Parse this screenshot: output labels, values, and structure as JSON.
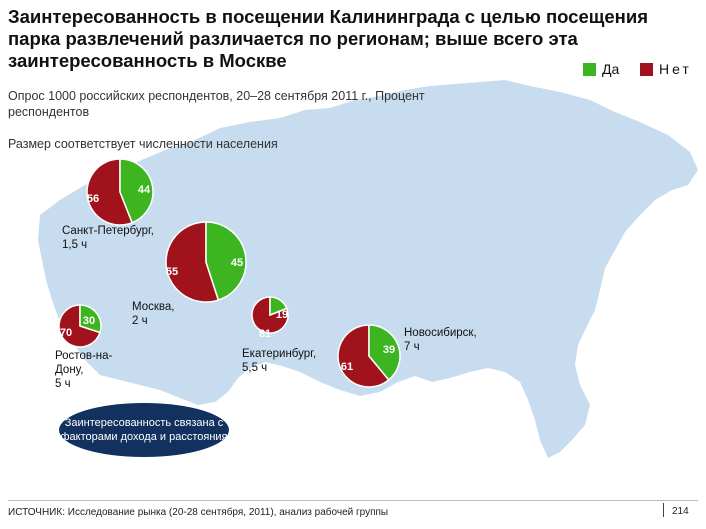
{
  "title": "Заинтересованность в посещении Калининграда с целью посещения парка развлечений различается по регионам; выше всего эта заинтересованность в Москве",
  "legend": [
    {
      "label": "Да",
      "color": "#3cb521"
    },
    {
      "label": "Нет",
      "color": "#a0131c"
    }
  ],
  "subtitle": "Опрос 1000 российских респондентов, 20–28 сентября 2011 г., Процент респондентов",
  "size_note": "Размер соответствует численности населения",
  "callout": "Заинтересованность связана с факторами дохода и расстояния",
  "source": "ИСТОЧНИК: Исследование рынка (20-28 сентября, 2011), анализ рабочей группы",
  "page_number": "214",
  "colors": {
    "yes": "#3cb521",
    "no": "#a0131c",
    "map": "#c7dcef",
    "callout": "#12315f"
  },
  "chart_data": {
    "type": "pie",
    "title": "Заинтересованность в посещении Калининграда с целью посещения парка развлечений различается по регионам; выше всего эта заинтересованность в Москве",
    "series_names": [
      "Да",
      "Нет"
    ],
    "pies": [
      {
        "city": "Санкт-Петербург",
        "time": "1,5 ч",
        "yes": 44,
        "no": 56
      },
      {
        "city": "Москва",
        "time": "2 ч",
        "yes": 45,
        "no": 55
      },
      {
        "city": "Ростов-на-Дону",
        "time": "5 ч",
        "yes": 30,
        "no": 70
      },
      {
        "city": "Екатеринбург",
        "time": "5,5 ч",
        "yes": 19,
        "no": 81
      },
      {
        "city": "Новосибирск",
        "time": "7 ч",
        "yes": 39,
        "no": 61
      }
    ]
  },
  "city_labels": [
    {
      "name": "Санкт-Петербург,",
      "time": "1,5 ч"
    },
    {
      "name": "Москва,",
      "time": "2 ч"
    },
    {
      "name": "Ростов-на-Дону,",
      "time": "5 ч"
    },
    {
      "name": "Екатеринбург,",
      "time": "5,5 ч"
    },
    {
      "name": "Новосибирск,",
      "time": "7 ч"
    }
  ]
}
